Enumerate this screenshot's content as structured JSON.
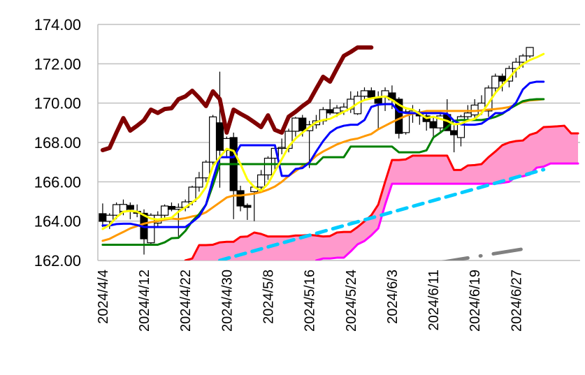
{
  "chart_data": {
    "type": "candlestick",
    "title": "",
    "xlabel": "",
    "ylabel": "",
    "ylim": [
      162,
      174
    ],
    "grid": "horizontal",
    "y_ticks": [
      "162.00",
      "164.00",
      "166.00",
      "168.00",
      "170.00",
      "172.00",
      "174.00"
    ],
    "x_ticks": [
      {
        "index": 0,
        "label": "2024/4/4"
      },
      {
        "index": 6,
        "label": "2024/4/12"
      },
      {
        "index": 12,
        "label": "2024/4/22"
      },
      {
        "index": 18,
        "label": "2024/4/30"
      },
      {
        "index": 24,
        "label": "2024/5/8"
      },
      {
        "index": 30,
        "label": "2024/5/16"
      },
      {
        "index": 36,
        "label": "2024/5/24"
      },
      {
        "index": 42,
        "label": "2024/6/3"
      },
      {
        "index": 48,
        "label": "2024/6/11"
      },
      {
        "index": 54,
        "label": "2024/6/19"
      },
      {
        "index": 60,
        "label": "2024/6/27"
      }
    ],
    "x_range": [
      -0.7,
      69.3
    ],
    "candles_ohlc": [
      [
        164.38,
        164.9,
        163.7,
        163.99
      ],
      [
        163.99,
        164.4,
        163.6,
        164.3
      ],
      [
        164.3,
        164.95,
        164.1,
        164.84
      ],
      [
        164.5,
        165.1,
        164.3,
        164.85
      ],
      [
        164.8,
        164.95,
        164.1,
        164.6
      ],
      [
        164.5,
        164.85,
        164.2,
        164.4
      ],
      [
        164.4,
        164.6,
        162.3,
        163.1
      ],
      [
        162.9,
        164.4,
        162.8,
        164.3
      ],
      [
        163.9,
        164.5,
        163.7,
        164.3
      ],
      [
        164.3,
        164.85,
        164.1,
        164.77
      ],
      [
        164.75,
        164.95,
        164.5,
        164.6
      ],
      [
        164.6,
        164.9,
        163.2,
        164.7
      ],
      [
        164.7,
        165.1,
        164.5,
        164.98
      ],
      [
        165.0,
        165.8,
        164.8,
        165.73
      ],
      [
        165.73,
        166.5,
        165.5,
        166.2
      ],
      [
        166.2,
        167.1,
        166.0,
        167.0
      ],
      [
        167.0,
        169.4,
        166.8,
        169.3
      ],
      [
        169.0,
        171.6,
        165.7,
        167.6
      ],
      [
        167.6,
        168.3,
        167.2,
        168.2
      ],
      [
        168.25,
        168.5,
        164.1,
        165.55
      ],
      [
        165.55,
        165.8,
        164.5,
        164.77
      ],
      [
        164.8,
        164.9,
        164.06,
        164.7
      ],
      [
        165.5,
        165.8,
        164.0,
        165.73
      ],
      [
        165.73,
        166.6,
        165.5,
        166.35
      ],
      [
        166.35,
        167.3,
        166.1,
        167.2
      ],
      [
        167.2,
        167.9,
        166.6,
        167.7
      ],
      [
        167.7,
        168.2,
        167.4,
        167.75
      ],
      [
        167.7,
        168.7,
        167.5,
        168.57
      ],
      [
        168.57,
        169.3,
        168.3,
        169.24
      ],
      [
        169.24,
        169.4,
        168.3,
        168.6
      ],
      [
        168.6,
        169.1,
        166.7,
        168.9
      ],
      [
        168.9,
        169.4,
        168.7,
        169.1
      ],
      [
        169.1,
        169.8,
        168.9,
        169.67
      ],
      [
        169.67,
        170.2,
        169.4,
        169.5
      ],
      [
        169.5,
        169.9,
        169.3,
        169.75
      ],
      [
        169.6,
        170.0,
        169.4,
        169.8
      ],
      [
        169.7,
        170.6,
        169.5,
        170.2
      ],
      [
        169.46,
        170.6,
        169.4,
        170.35
      ],
      [
        170.35,
        170.8,
        170.2,
        170.63
      ],
      [
        170.63,
        170.8,
        170.2,
        170.3
      ],
      [
        170.27,
        170.6,
        168.7,
        169.99
      ],
      [
        170.35,
        170.8,
        169.6,
        170.63
      ],
      [
        170.52,
        170.9,
        169.7,
        170.17
      ],
      [
        170.2,
        170.3,
        168.2,
        168.46
      ],
      [
        168.5,
        169.8,
        168.4,
        169.56
      ],
      [
        169.5,
        169.9,
        169.0,
        169.6
      ],
      [
        169.56,
        169.7,
        168.9,
        169.35
      ],
      [
        169.35,
        169.5,
        168.6,
        169.06
      ],
      [
        169.06,
        169.3,
        168.3,
        168.74
      ],
      [
        168.74,
        169.5,
        168.5,
        169.35
      ],
      [
        169.42,
        170.2,
        168.8,
        168.6
      ],
      [
        168.6,
        168.9,
        167.5,
        168.39
      ],
      [
        168.25,
        169.4,
        167.8,
        169.31
      ],
      [
        169.31,
        169.9,
        169.1,
        169.5
      ],
      [
        169.4,
        170.2,
        169.2,
        169.9
      ],
      [
        169.6,
        170.4,
        169.4,
        170.0
      ],
      [
        169.6,
        170.9,
        169.3,
        170.77
      ],
      [
        170.77,
        171.5,
        170.5,
        171.37
      ],
      [
        171.37,
        171.5,
        170.6,
        171.12
      ],
      [
        171.12,
        171.9,
        170.8,
        171.76
      ],
      [
        171.76,
        172.3,
        171.3,
        172.08
      ],
      [
        172.08,
        172.5,
        171.8,
        172.4
      ],
      [
        172.4,
        172.85,
        172.3,
        172.83
      ]
    ],
    "cloud": {
      "fill": "#ff99cc",
      "span_a": {
        "name": "senkou-span-a",
        "color": "#ff0000",
        "start": 12,
        "values": [
          162.0,
          162.1,
          162.78,
          162.78,
          162.8,
          162.92,
          162.95,
          162.95,
          163.2,
          163.22,
          163.42,
          163.35,
          163.22,
          163.22,
          163.22,
          163.22,
          163.27,
          163.27,
          163.3,
          163.27,
          163.22,
          163.24,
          163.42,
          163.45,
          163.45,
          163.7,
          163.99,
          164.3,
          164.84,
          166.0,
          167.11,
          167.11,
          167.14,
          167.33,
          167.33,
          167.33,
          167.33,
          167.33,
          167.33,
          166.6,
          166.6,
          166.83,
          166.85,
          166.9,
          167.25,
          167.54,
          167.86,
          168.0,
          168.07,
          168.1,
          168.39,
          168.5,
          168.78,
          168.8,
          168.82,
          168.85,
          168.46,
          168.46
        ]
      },
      "span_b": {
        "name": "senkou-span-b",
        "color": "#ff00ff",
        "start": 31,
        "values": [
          162.0,
          162.1,
          162.1,
          162.14,
          162.14,
          162.46,
          162.82,
          162.99,
          163.28,
          163.63,
          164.84,
          165.9,
          165.9,
          165.9,
          165.9,
          165.9,
          165.9,
          165.9,
          165.9,
          165.9,
          165.9,
          165.9,
          165.9,
          165.9,
          165.9,
          165.9,
          165.9,
          165.95,
          166.0,
          166.26,
          166.28,
          166.37,
          166.72,
          166.77,
          166.93,
          166.93,
          166.93,
          166.93,
          166.93
        ]
      }
    },
    "series": [
      {
        "name": "lagging-span",
        "color": "#800000",
        "width": 6,
        "start": 0,
        "values": [
          167.61,
          167.72,
          168.5,
          169.24,
          168.6,
          168.85,
          169.13,
          169.67,
          169.5,
          169.7,
          169.74,
          170.2,
          170.34,
          170.63,
          170.27,
          169.85,
          170.6,
          170.2,
          168.5,
          169.67,
          169.46,
          169.27,
          169.03,
          168.78,
          169.38,
          168.64,
          168.5,
          169.31,
          169.56,
          169.85,
          170.1,
          170.73,
          171.34,
          171.09,
          171.76,
          172.4,
          172.6,
          172.83,
          172.83,
          172.83
        ]
      },
      {
        "name": "base-line",
        "color": "#008000",
        "width": 3,
        "start": 0,
        "values": [
          162.8,
          162.8,
          162.8,
          162.8,
          162.8,
          162.8,
          162.8,
          162.8,
          162.8,
          162.92,
          163.13,
          163.15,
          163.5,
          164.0,
          164.35,
          164.84,
          165.83,
          166.9,
          166.9,
          166.9,
          166.9,
          166.9,
          166.9,
          166.9,
          166.9,
          166.9,
          166.9,
          166.9,
          166.9,
          166.9,
          166.9,
          166.9,
          167.25,
          167.25,
          167.25,
          167.25,
          167.79,
          167.79,
          167.79,
          167.79,
          167.79,
          167.79,
          167.79,
          167.5,
          167.5,
          167.5,
          167.5,
          167.6,
          168.25,
          168.5,
          168.78,
          169.1,
          169.14,
          169.14,
          169.14,
          169.14,
          169.2,
          169.3,
          169.45,
          169.7,
          169.9,
          170.1,
          170.17,
          170.2,
          170.2
        ]
      },
      {
        "name": "ma-long",
        "color": "#ff9900",
        "width": 3,
        "start": 0,
        "values": [
          163.0,
          163.1,
          163.28,
          163.45,
          163.63,
          163.75,
          163.87,
          163.95,
          164.0,
          164.08,
          164.13,
          164.1,
          164.15,
          164.24,
          164.3,
          164.45,
          164.7,
          164.95,
          165.2,
          165.3,
          165.3,
          165.35,
          165.4,
          165.48,
          165.6,
          165.76,
          166.0,
          166.3,
          166.54,
          166.8,
          167.0,
          167.32,
          167.54,
          167.72,
          167.9,
          168.03,
          168.14,
          168.2,
          168.32,
          168.43,
          168.67,
          168.85,
          169.03,
          169.2,
          169.35,
          169.46,
          169.52,
          169.6,
          169.6,
          169.6,
          169.6,
          169.6,
          169.6,
          169.6,
          169.6,
          169.63,
          169.67,
          169.7,
          169.74,
          169.8,
          169.92,
          170.06,
          170.14,
          170.16,
          170.2
        ]
      },
      {
        "name": "conversion-line",
        "color": "#0000ff",
        "width": 3,
        "start": 0,
        "values": [
          163.78,
          163.78,
          163.85,
          163.87,
          163.87,
          163.8,
          163.7,
          163.7,
          163.7,
          163.7,
          163.7,
          163.7,
          163.7,
          163.95,
          164.24,
          164.84,
          166.12,
          167.25,
          167.25,
          167.25,
          167.86,
          167.86,
          167.86,
          167.86,
          167.86,
          167.86,
          166.3,
          166.3,
          166.65,
          166.7,
          166.97,
          167.54,
          168.07,
          168.5,
          168.74,
          168.85,
          168.9,
          168.9,
          169.14,
          169.81,
          169.92,
          169.95,
          169.95,
          169.56,
          169.5,
          169.49,
          169.49,
          169.49,
          169.49,
          169.49,
          169.46,
          169.1,
          168.92,
          168.9,
          168.9,
          168.96,
          169.2,
          169.49,
          169.49,
          169.67,
          170.02,
          170.7,
          171.02,
          171.09,
          171.09
        ]
      },
      {
        "name": "ma-short",
        "color": "#ffff00",
        "width": 3,
        "start": 0,
        "values": [
          163.6,
          163.8,
          164.2,
          164.48,
          164.52,
          164.48,
          164.3,
          164.13,
          164.08,
          164.13,
          164.17,
          164.48,
          164.7,
          164.95,
          165.23,
          165.73,
          166.8,
          167.25,
          167.68,
          167.57,
          166.9,
          166.12,
          165.73,
          165.55,
          165.9,
          166.54,
          167.15,
          167.79,
          168.2,
          168.5,
          168.78,
          169.03,
          169.14,
          169.2,
          169.38,
          169.56,
          169.74,
          169.99,
          170.16,
          170.24,
          170.3,
          170.34,
          170.16,
          169.92,
          169.74,
          169.67,
          169.46,
          169.24,
          169.31,
          169.2,
          169.1,
          168.92,
          168.96,
          169.1,
          169.2,
          169.49,
          169.99,
          170.52,
          170.91,
          171.27,
          171.69,
          171.98,
          172.19,
          172.33,
          172.5
        ]
      }
    ],
    "trend_lines": [
      {
        "name": "trend-line-cyan",
        "color": "#00ccff",
        "style": "dashed",
        "points": [
          [
            17,
            162.0
          ],
          [
            64,
            166.62
          ]
        ]
      },
      {
        "name": "trend-line-gray",
        "color": "#808080",
        "style": "dash-dot",
        "points": [
          [
            49,
            161.9
          ],
          [
            62,
            162.64
          ]
        ]
      }
    ]
  }
}
